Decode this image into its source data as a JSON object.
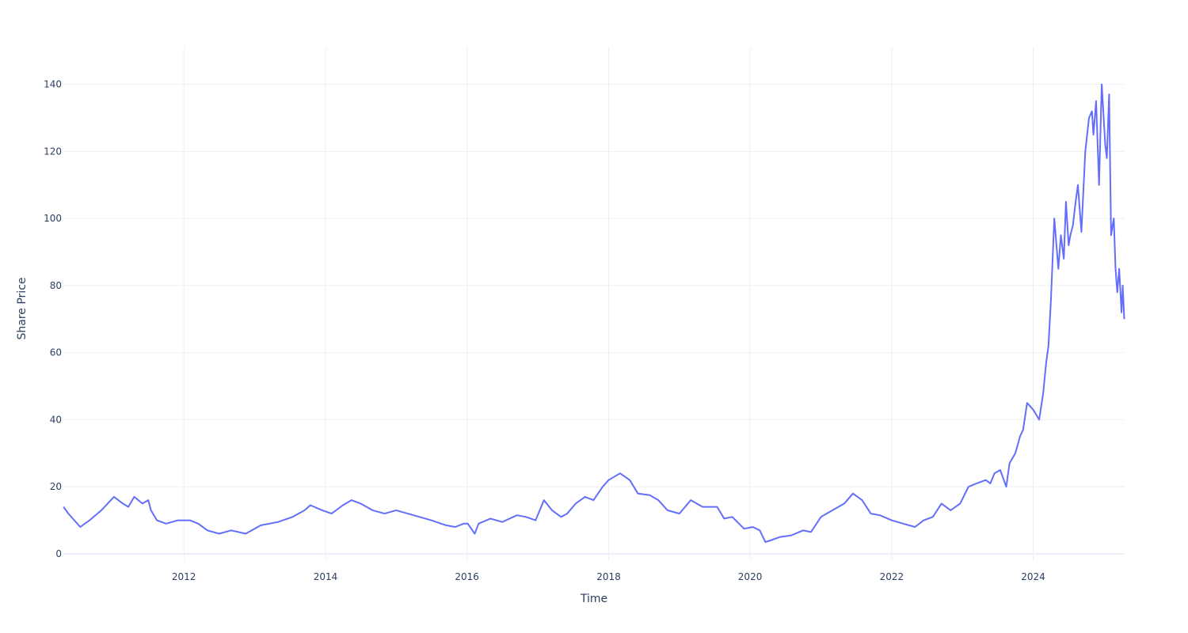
{
  "chart_data": {
    "type": "line",
    "title": "",
    "xlabel": "Time",
    "ylabel": "Share Price",
    "xlim": [
      "2010-04-19",
      "2025-04-17"
    ],
    "ylim": [
      -1.9,
      151
    ],
    "grid": true,
    "legend": "none",
    "x_ticks": [
      "2012",
      "2014",
      "2016",
      "2018",
      "2020",
      "2022",
      "2024"
    ],
    "y_ticks": [
      "0",
      "20",
      "40",
      "60",
      "80",
      "100",
      "120",
      "140"
    ],
    "series": [
      {
        "color": "#636efa",
        "x": [
          "2010-04-20",
          "2010-05-15",
          "2010-06-15",
          "2010-07-15",
          "2010-09-01",
          "2010-11-01",
          "2011-01-05",
          "2011-02-20",
          "2011-03-20",
          "2011-04-20",
          "2011-06-01",
          "2011-07-01",
          "2011-07-15",
          "2011-08-15",
          "2011-10-01",
          "2011-12-01",
          "2012-02-01",
          "2012-03-15",
          "2012-05-01",
          "2012-07-01",
          "2012-09-01",
          "2012-11-15",
          "2013-02-01",
          "2013-05-01",
          "2013-07-15",
          "2013-09-15",
          "2013-10-15",
          "2013-12-15",
          "2014-02-01",
          "2014-04-01",
          "2014-05-15",
          "2014-07-01",
          "2014-09-01",
          "2014-11-01",
          "2015-01-01",
          "2015-03-01",
          "2015-05-01",
          "2015-07-01",
          "2015-09-15",
          "2015-11-01",
          "2015-12-15",
          "2016-01-05",
          "2016-02-10",
          "2016-03-01",
          "2016-05-01",
          "2016-07-01",
          "2016-09-15",
          "2016-11-01",
          "2016-12-20",
          "2017-02-01",
          "2017-03-15",
          "2017-05-01",
          "2017-06-01",
          "2017-07-15",
          "2017-09-01",
          "2017-10-15",
          "2017-12-01",
          "2018-01-01",
          "2018-03-01",
          "2018-04-20",
          "2018-06-01",
          "2018-08-01",
          "2018-09-15",
          "2018-11-01",
          "2019-01-01",
          "2019-03-01",
          "2019-05-01",
          "2019-07-15",
          "2019-08-20",
          "2019-10-01",
          "2019-12-01",
          "2020-01-15",
          "2020-02-20",
          "2020-03-20",
          "2020-04-15",
          "2020-06-01",
          "2020-08-01",
          "2020-10-01",
          "2020-11-10",
          "2021-01-01",
          "2021-03-01",
          "2021-05-01",
          "2021-06-15",
          "2021-08-01",
          "2021-09-15",
          "2021-11-01",
          "2022-01-01",
          "2022-03-01",
          "2022-05-01",
          "2022-06-15",
          "2022-08-01",
          "2022-09-15",
          "2022-11-01",
          "2022-12-20",
          "2023-02-01",
          "2023-03-15",
          "2023-05-01",
          "2023-05-25",
          "2023-06-15",
          "2023-07-15",
          "2023-08-15",
          "2023-09-01",
          "2023-10-01",
          "2023-10-25",
          "2023-11-10",
          "2023-12-01",
          "2024-01-01",
          "2024-02-01",
          "2024-02-22",
          "2024-03-08",
          "2024-03-20",
          "2024-04-01",
          "2024-04-19",
          "2024-05-10",
          "2024-05-23",
          "2024-06-07",
          "2024-06-18",
          "2024-07-02",
          "2024-07-11",
          "2024-07-24",
          "2024-08-05",
          "2024-08-19",
          "2024-09-06",
          "2024-09-26",
          "2024-10-15",
          "2024-10-30",
          "2024-11-07",
          "2024-11-21",
          "2024-12-06",
          "2024-12-20",
          "2025-01-07",
          "2025-01-15",
          "2025-01-27",
          "2025-02-06",
          "2025-02-20",
          "2025-03-01",
          "2025-03-10",
          "2025-03-20",
          "2025-04-01",
          "2025-04-07",
          "2025-04-15"
        ],
        "y": [
          14,
          12,
          10,
          8,
          10,
          13,
          17,
          15,
          14,
          17,
          15,
          16,
          13,
          10,
          9,
          10,
          10,
          9,
          7,
          6,
          7,
          6,
          8.5,
          9.5,
          11,
          13,
          14.5,
          13,
          12,
          14.5,
          16,
          15,
          13,
          12,
          13,
          12,
          11,
          10,
          8.5,
          8,
          9,
          9,
          6,
          9,
          10.5,
          9.5,
          11.5,
          11,
          10,
          16,
          13,
          11,
          12,
          15,
          17,
          16,
          20,
          22,
          24,
          22,
          18,
          17.5,
          16,
          13,
          12,
          16,
          14,
          14,
          10.5,
          11,
          7.5,
          8,
          7,
          3.5,
          4,
          5,
          5.5,
          7,
          6.5,
          11,
          13,
          15,
          18,
          16,
          12,
          11.5,
          10,
          9,
          8,
          10,
          11,
          15,
          13,
          15,
          20,
          21,
          22,
          21,
          24,
          25,
          20,
          27,
          30,
          35,
          37,
          45,
          43,
          40,
          48,
          57,
          62,
          75,
          100,
          85,
          95,
          88,
          105,
          92,
          95,
          98,
          104,
          110,
          96,
          120,
          130,
          132,
          125,
          135,
          110,
          140,
          122,
          118,
          137,
          95,
          100,
          85,
          78,
          85,
          72,
          80,
          70
        ]
      }
    ]
  }
}
